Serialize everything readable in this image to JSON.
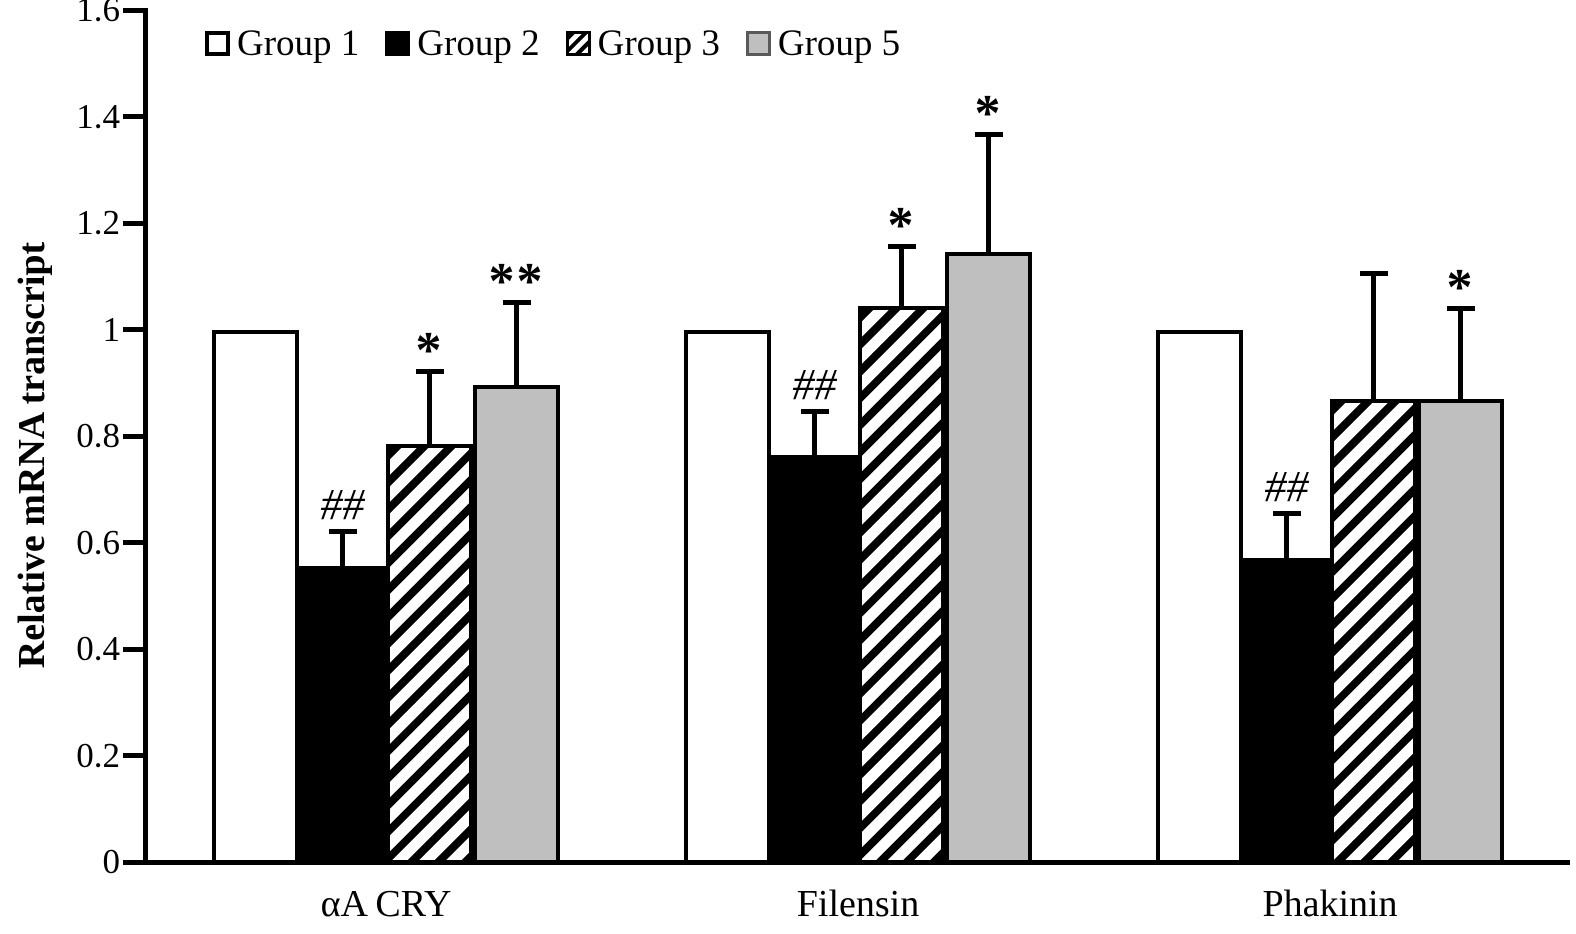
{
  "chart_data": {
    "type": "bar",
    "title": "",
    "xlabel": "",
    "ylabel": "Relative mRNA transcript",
    "categories": [
      "αA CRY",
      "Filensin",
      "Phakinin"
    ],
    "series": [
      {
        "name": "Group 1",
        "fill": "white",
        "values": [
          1.0,
          1.0,
          1.0
        ],
        "errors": [
          null,
          null,
          null
        ],
        "annotations": [
          "",
          "",
          ""
        ]
      },
      {
        "name": "Group 2",
        "fill": "black",
        "values": [
          0.555,
          0.765,
          0.57
        ],
        "errors": [
          0.07,
          0.085,
          0.09
        ],
        "annotations": [
          "##",
          "##",
          "##"
        ]
      },
      {
        "name": "Group 3",
        "fill": "hatched",
        "values": [
          0.785,
          1.045,
          0.87
        ],
        "errors": [
          0.14,
          0.115,
          0.24
        ],
        "annotations": [
          "*",
          "*",
          ""
        ]
      },
      {
        "name": "Group 5",
        "fill": "gray",
        "values": [
          0.895,
          1.145,
          0.87
        ],
        "errors": [
          0.16,
          0.225,
          0.175
        ],
        "annotations": [
          "**",
          "*",
          "*"
        ]
      }
    ],
    "ylim": [
      0,
      1.6
    ],
    "yticks": {
      "values": [
        0,
        0.2,
        0.4,
        0.6,
        0.8,
        1,
        1.2,
        1.4,
        1.6
      ],
      "labels": [
        "0",
        "0.2",
        "0.4",
        "0.6",
        "0.8",
        "1",
        "1.2",
        "1.4",
        "1.6"
      ]
    },
    "grid": false,
    "legend_position": "top-left",
    "error_bar_style": "upper-only-with-cap",
    "colors": {
      "axis": "#000000",
      "bar_white": "#ffffff",
      "bar_black": "#000000",
      "bar_gray": "#bfbfbf",
      "hatch_pattern": "black-white diagonal / stripes"
    }
  }
}
